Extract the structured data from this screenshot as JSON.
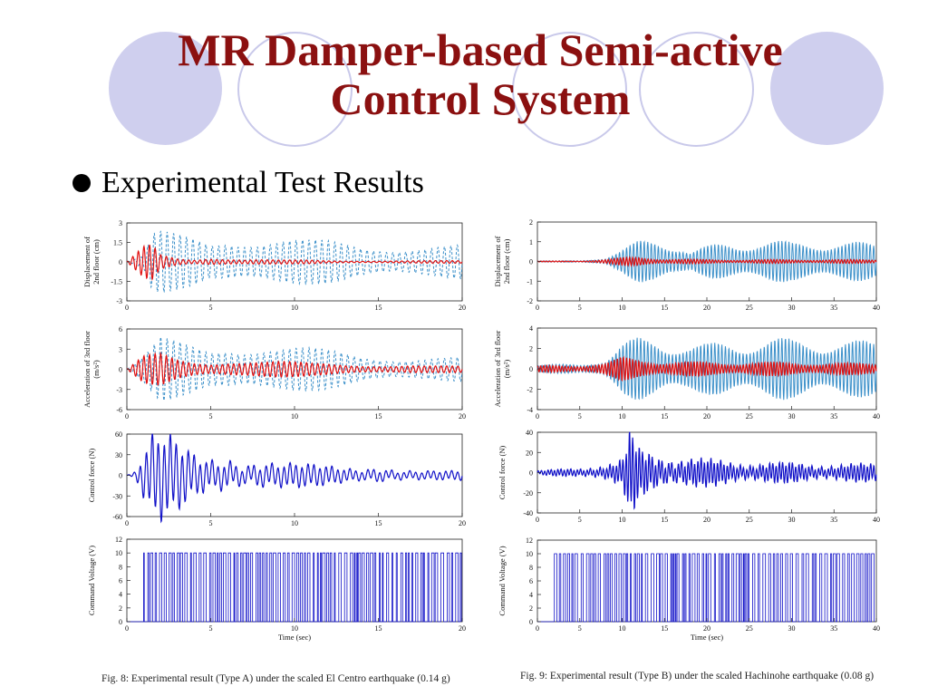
{
  "slide": {
    "title": "MR Damper-based Semi-active Control System",
    "bullet": "Experimental Test Results"
  },
  "colors": {
    "title": "#8b1010",
    "uncontrolled_dashed": "#3a8fc9",
    "controlled": "#e01010",
    "force_voltage": "#1010c8",
    "decoration": "#cfcfee"
  },
  "figures": [
    {
      "caption": "Fig. 8: Experimental result (Type A) under the scaled El Centro earthquake (0.14 g)",
      "xlabel": "Time (sec)",
      "panels": [
        {
          "ylabel": [
            "Displacement of",
            "2nd floor (cm)"
          ],
          "xlim": [
            0,
            20
          ],
          "ylim": [
            -3,
            3
          ],
          "xticks": [
            "0",
            "5",
            "10",
            "15",
            "20"
          ],
          "yticks": [
            "3",
            "1.5",
            "0",
            "-1.5",
            "-3"
          ]
        },
        {
          "ylabel": [
            "Acceleration of   3rd floor",
            "(m/s²)"
          ],
          "xlim": [
            0,
            20
          ],
          "ylim": [
            -6,
            6
          ],
          "xticks": [
            "0",
            "5",
            "10",
            "15",
            "20"
          ],
          "yticks": [
            "6",
            "3",
            "0",
            "-3",
            "-6"
          ]
        },
        {
          "ylabel": [
            "Control force (N)"
          ],
          "xlim": [
            0,
            20
          ],
          "ylim": [
            -60,
            60
          ],
          "xticks": [
            "0",
            "5",
            "10",
            "15",
            "20"
          ],
          "yticks": [
            "60",
            "30",
            "0",
            "-30",
            "-60"
          ]
        },
        {
          "ylabel": [
            "Command Voltage (V)"
          ],
          "xlim": [
            0,
            20
          ],
          "ylim": [
            0,
            12
          ],
          "xticks": [
            "0",
            "5",
            "10",
            "15",
            "20"
          ],
          "yticks": [
            "12",
            "10",
            "8",
            "6",
            "4",
            "2",
            "0"
          ]
        }
      ]
    },
    {
      "caption": "Fig. 9: Experimental result (Type B) under the scaled Hachinohe earthquake (0.08 g)",
      "xlabel": "Time (sec)",
      "panels": [
        {
          "ylabel": [
            "Displacement of",
            "2nd floor (cm)"
          ],
          "xlim": [
            0,
            40
          ],
          "ylim": [
            -2,
            2
          ],
          "xticks": [
            "0",
            "5",
            "10",
            "15",
            "20",
            "25",
            "30",
            "35",
            "40"
          ],
          "yticks": [
            "2",
            "1",
            "0",
            "-1",
            "-2"
          ]
        },
        {
          "ylabel": [
            "Acceleration of   3rd floor",
            "(m/s²)"
          ],
          "xlim": [
            0,
            40
          ],
          "ylim": [
            -4,
            4
          ],
          "xticks": [
            "0",
            "5",
            "10",
            "15",
            "20",
            "25",
            "30",
            "35",
            "40"
          ],
          "yticks": [
            "4",
            "2",
            "0",
            "-2",
            "-4"
          ]
        },
        {
          "ylabel": [
            "Control force (N)"
          ],
          "xlim": [
            0,
            40
          ],
          "ylim": [
            -40,
            40
          ],
          "xticks": [
            "0",
            "5",
            "10",
            "15",
            "20",
            "25",
            "30",
            "35",
            "40"
          ],
          "yticks": [
            "40",
            "20",
            "0",
            "-20",
            "-40"
          ]
        },
        {
          "ylabel": [
            "Command Voltage (V)"
          ],
          "xlim": [
            0,
            40
          ],
          "ylim": [
            0,
            12
          ],
          "xticks": [
            "0",
            "5",
            "10",
            "15",
            "20",
            "25",
            "30",
            "35",
            "40"
          ],
          "yticks": [
            "12",
            "10",
            "8",
            "6",
            "4",
            "2",
            "0"
          ]
        }
      ]
    }
  ],
  "chart_data": [
    {
      "type": "line",
      "title": "",
      "xlabel": "",
      "ylabel": "Displacement of 2nd floor (cm)",
      "xlim": [
        0,
        20
      ],
      "ylim": [
        -3,
        3
      ],
      "series": [
        {
          "style": "dashed",
          "color": "#3a8fc9",
          "x": [
            0,
            1,
            1.5,
            2,
            3,
            4,
            5,
            6,
            7,
            8,
            9,
            10,
            11,
            12,
            13,
            14,
            15,
            16,
            17,
            18,
            19,
            20
          ],
          "y_envelope": [
            0,
            0.5,
            2.2,
            2.4,
            2.2,
            2.1,
            1.8,
            2.4,
            2.2,
            2.0,
            1.9,
            1.8,
            1.7,
            1.7,
            1.6,
            1.5,
            1.5,
            1.4,
            1.4,
            1.3,
            1.3,
            1.3
          ]
        },
        {
          "style": "solid",
          "color": "#e01010",
          "x": [
            0,
            1,
            1.5,
            2,
            3,
            4,
            5,
            6,
            7,
            8,
            9,
            10,
            11,
            12,
            13,
            14,
            15,
            16,
            17,
            18,
            19,
            20
          ],
          "y_envelope": [
            0,
            1.2,
            1.4,
            0.6,
            0.3,
            0.2,
            0.4,
            0.3,
            0.2,
            0.2,
            0.15,
            0.15,
            0.15,
            0.1,
            0.1,
            0.1,
            0.1,
            0.1,
            0.1,
            0.1,
            0.1,
            0.1
          ]
        }
      ]
    },
    {
      "type": "line",
      "title": "",
      "xlabel": "",
      "ylabel": "Acceleration of 3rd floor (m/s²)",
      "xlim": [
        0,
        20
      ],
      "ylim": [
        -6,
        6
      ],
      "series": [
        {
          "style": "dashed",
          "color": "#3a8fc9",
          "x": [
            0,
            1,
            2,
            3,
            4,
            5,
            6,
            7,
            8,
            9,
            10,
            11,
            12,
            13,
            14,
            15,
            16,
            17,
            18,
            19,
            20
          ],
          "y_envelope": [
            0,
            2.0,
            4.8,
            4.3,
            3.9,
            3.5,
            4.6,
            4.2,
            4.0,
            3.6,
            3.4,
            3.2,
            3.0,
            2.8,
            2.5,
            2.4,
            2.2,
            2.0,
            1.9,
            1.8,
            1.8
          ]
        },
        {
          "style": "solid",
          "color": "#e01010",
          "x": [
            0,
            1,
            2,
            3,
            4,
            5,
            6,
            7,
            8,
            9,
            10,
            11,
            12,
            13,
            14,
            15,
            16,
            17,
            18,
            19,
            20
          ],
          "y_envelope": [
            0,
            2.0,
            2.6,
            1.8,
            1.4,
            1.2,
            1.5,
            1.3,
            1.2,
            1.2,
            1.1,
            1.0,
            1.0,
            0.9,
            0.8,
            0.7,
            0.6,
            0.6,
            0.5,
            0.5,
            0.5
          ]
        }
      ]
    },
    {
      "type": "line",
      "title": "",
      "xlabel": "",
      "ylabel": "Control force (N)",
      "xlim": [
        0,
        20
      ],
      "ylim": [
        -60,
        60
      ],
      "series": [
        {
          "style": "solid",
          "color": "#1010c8",
          "x": [
            0,
            0.5,
            1,
            1.5,
            2,
            2.5,
            3,
            4,
            5,
            6,
            7,
            8,
            9,
            10,
            11,
            12,
            13,
            14,
            15,
            16,
            17,
            18,
            19,
            20
          ],
          "y_envelope": [
            0,
            5,
            30,
            50,
            55,
            50,
            45,
            30,
            25,
            30,
            20,
            22,
            18,
            16,
            14,
            12,
            10,
            9,
            14,
            10,
            8,
            7,
            6,
            6
          ]
        }
      ]
    },
    {
      "type": "bar",
      "title": "",
      "xlabel": "Time (sec)",
      "ylabel": "Command Voltage (V)",
      "xlim": [
        0,
        20
      ],
      "ylim": [
        0,
        12
      ],
      "series": [
        {
          "style": "on/off switching",
          "color": "#1010c8",
          "levels": [
            0,
            10
          ]
        }
      ]
    },
    {
      "type": "line",
      "title": "",
      "xlabel": "",
      "ylabel": "Displacement of 2nd floor (cm)",
      "xlim": [
        0,
        40
      ],
      "ylim": [
        -2,
        2
      ],
      "series": [
        {
          "style": "solid",
          "color": "#3a8fc9",
          "x": [
            0,
            5,
            8,
            10,
            12,
            14,
            15,
            17,
            18,
            20,
            22,
            25,
            28,
            30,
            32,
            35,
            38,
            40
          ],
          "y_envelope": [
            0.02,
            0.05,
            0.2,
            0.6,
            1.1,
            1.3,
            1.2,
            0.8,
            0.5,
            0.8,
            1.0,
            1.1,
            1.1,
            1.0,
            1.1,
            1.1,
            1.0,
            0.9
          ]
        },
        {
          "style": "solid",
          "color": "#e01010",
          "x": [
            0,
            5,
            8,
            10,
            12,
            15,
            20,
            25,
            30,
            35,
            40
          ],
          "y_envelope": [
            0.02,
            0.03,
            0.1,
            0.2,
            0.25,
            0.15,
            0.1,
            0.1,
            0.1,
            0.1,
            0.1
          ]
        }
      ]
    },
    {
      "type": "line",
      "title": "",
      "xlabel": "",
      "ylabel": "Acceleration of 3rd floor (m/s²)",
      "xlim": [
        0,
        40
      ],
      "ylim": [
        -4,
        4
      ],
      "series": [
        {
          "style": "solid",
          "color": "#3a8fc9",
          "x": [
            0,
            5,
            8,
            10,
            12,
            14,
            16,
            18,
            20,
            22,
            25,
            28,
            30,
            32,
            35,
            38,
            40
          ],
          "y_envelope": [
            0.4,
            0.5,
            1.0,
            2.5,
            3.2,
            3.3,
            2.8,
            2.4,
            2.5,
            2.8,
            3.0,
            3.1,
            3.0,
            3.1,
            3.0,
            2.8,
            2.8
          ]
        },
        {
          "style": "solid",
          "color": "#e01010",
          "x": [
            0,
            5,
            8,
            10,
            12,
            15,
            20,
            25,
            30,
            35,
            40
          ],
          "y_envelope": [
            0.3,
            0.4,
            0.6,
            1.2,
            1.0,
            0.8,
            0.7,
            0.7,
            0.7,
            0.6,
            0.6
          ]
        }
      ]
    },
    {
      "type": "line",
      "title": "",
      "xlabel": "",
      "ylabel": "Control force (N)",
      "xlim": [
        0,
        40
      ],
      "ylim": [
        -40,
        40
      ],
      "series": [
        {
          "style": "solid",
          "color": "#1010c8",
          "x": [
            0,
            5,
            8,
            10,
            11,
            12,
            14,
            16,
            18,
            20,
            25,
            30,
            35,
            40
          ],
          "y_envelope": [
            2,
            4,
            8,
            12,
            38,
            22,
            18,
            15,
            14,
            12,
            10,
            9,
            8,
            8
          ]
        }
      ]
    },
    {
      "type": "bar",
      "title": "",
      "xlabel": "Time (sec)",
      "ylabel": "Command Voltage (V)",
      "xlim": [
        0,
        40
      ],
      "ylim": [
        0,
        12
      ],
      "series": [
        {
          "style": "on/off switching",
          "color": "#1010c8",
          "levels": [
            0,
            10
          ]
        }
      ]
    }
  ]
}
